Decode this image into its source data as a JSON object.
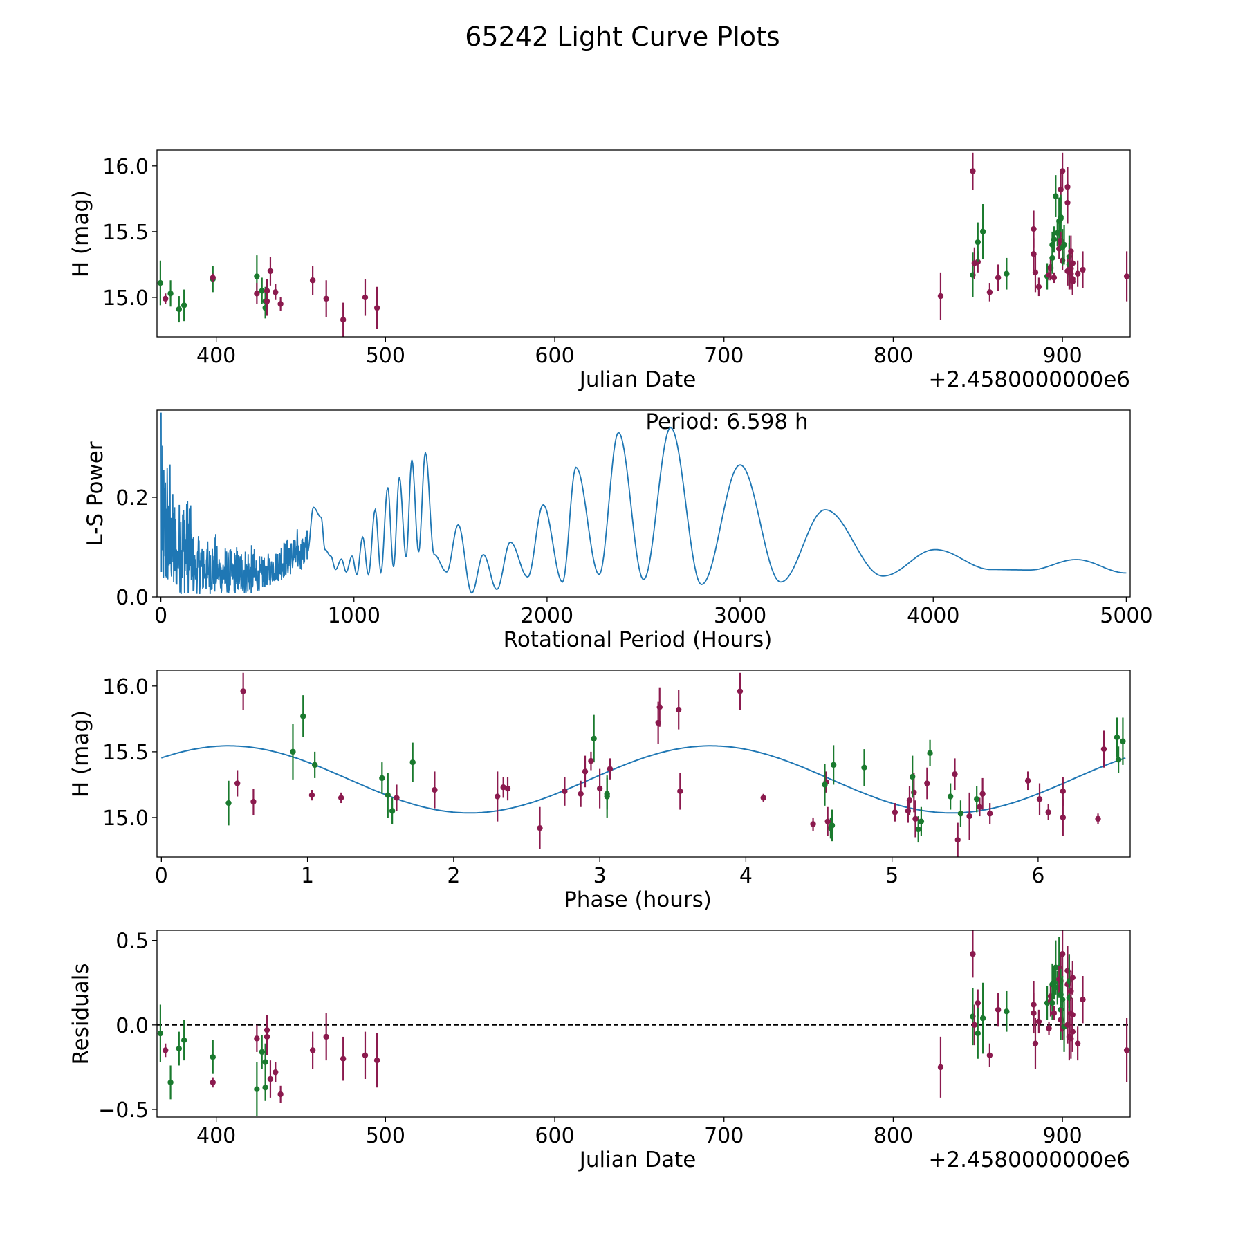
{
  "title": "65242 Light Curve Plots",
  "colors": {
    "r": "#8b1a4e",
    "g": "#1a7a2e",
    "model": "#1f77b4",
    "zero": "#000000"
  },
  "panels": [
    {
      "id": "lightcurve",
      "xlabel": "Julian Date",
      "ylabel": "H (mag)",
      "offset_text": "+2.4580000000e6",
      "xlim": [
        365,
        940
      ],
      "ylim": [
        14.7,
        16.12
      ],
      "xticks": [
        400,
        500,
        600,
        700,
        800,
        900
      ],
      "xtick_labels": [
        "400",
        "500",
        "600",
        "700",
        "800",
        "900"
      ],
      "yticks": [
        15.0,
        15.5,
        16.0
      ],
      "ytick_labels": [
        "15.0",
        "15.5",
        "16.0"
      ]
    },
    {
      "id": "periodogram",
      "xlabel": "Rotational Period (Hours)",
      "ylabel": "L-S Power",
      "xlim": [
        -20,
        5020
      ],
      "ylim": [
        0,
        0.375
      ],
      "xticks": [
        0,
        1000,
        2000,
        3000,
        4000,
        5000
      ],
      "xtick_labels": [
        "0",
        "1000",
        "2000",
        "3000",
        "4000",
        "5000"
      ],
      "yticks": [
        0.0,
        0.2
      ],
      "ytick_labels": [
        "0.0",
        "0.2"
      ],
      "annotation": "Period: 6.598 h"
    },
    {
      "id": "phased",
      "xlabel": "Phase (hours)",
      "ylabel": "H (mag)",
      "xlim": [
        -0.03,
        6.63
      ],
      "ylim": [
        14.7,
        16.12
      ],
      "xticks": [
        0,
        1,
        2,
        3,
        4,
        5,
        6
      ],
      "xtick_labels": [
        "0",
        "1",
        "2",
        "3",
        "4",
        "5",
        "6"
      ],
      "yticks": [
        15.0,
        15.5,
        16.0
      ],
      "ytick_labels": [
        "15.0",
        "15.5",
        "16.0"
      ]
    },
    {
      "id": "residuals",
      "xlabel": "Julian Date",
      "ylabel": "Residuals",
      "offset_text": "+2.4580000000e6",
      "xlim": [
        365,
        940
      ],
      "ylim": [
        -0.545,
        0.56
      ],
      "xticks": [
        400,
        500,
        600,
        700,
        800,
        900
      ],
      "xtick_labels": [
        "400",
        "500",
        "600",
        "700",
        "800",
        "900"
      ],
      "yticks": [
        -0.5,
        0.0,
        0.5
      ],
      "ytick_labels": [
        "−0.5",
        "0.0",
        "0.5"
      ]
    }
  ],
  "chart_data": {
    "type": "scatter",
    "title": "65242 Light Curve Plots",
    "offset": 2458000,
    "period_hours": 6.598,
    "model": {
      "mean": 15.29,
      "amplitude": 0.255,
      "peak_phase_hours": 0.46
    },
    "observations": [
      {
        "t": 367,
        "h": 15.11,
        "e": 0.17,
        "b": "g",
        "ph": 0.46
      },
      {
        "t": 370,
        "h": 14.99,
        "e": 0.04,
        "b": "r",
        "ph": 6.41
      },
      {
        "t": 373,
        "h": 15.03,
        "e": 0.1,
        "b": "g",
        "ph": 5.47
      },
      {
        "t": 378,
        "h": 14.91,
        "e": 0.1,
        "b": "g",
        "ph": 5.18
      },
      {
        "t": 381,
        "h": 14.94,
        "e": 0.12,
        "b": "g",
        "ph": 4.59
      },
      {
        "t": 398,
        "h": 15.14,
        "e": 0.1,
        "b": "g",
        "ph": 5.58
      },
      {
        "t": 398,
        "h": 15.15,
        "e": 0.03,
        "b": "r",
        "ph": 4.12
      },
      {
        "t": 424,
        "h": 15.16,
        "e": 0.16,
        "b": "g",
        "ph": 3.05
      },
      {
        "t": 424,
        "h": 15.03,
        "e": 0.08,
        "b": "r",
        "ph": 5.67
      },
      {
        "t": 427,
        "h": 15.05,
        "e": 0.1,
        "b": "g",
        "ph": 1.58
      },
      {
        "t": 429,
        "h": 14.97,
        "e": 0.11,
        "b": "g",
        "ph": 5.2
      },
      {
        "t": 429,
        "h": 14.92,
        "e": 0.08,
        "b": "g",
        "ph": 4.58
      },
      {
        "t": 430,
        "h": 15.05,
        "e": 0.09,
        "b": "r",
        "ph": 5.11
      },
      {
        "t": 430,
        "h": 14.97,
        "e": 0.11,
        "b": "r",
        "ph": 4.56
      },
      {
        "t": 432,
        "h": 15.2,
        "e": 0.11,
        "b": "r",
        "ph": 6.17
      },
      {
        "t": 435,
        "h": 15.04,
        "e": 0.06,
        "b": "r",
        "ph": 6.07
      },
      {
        "t": 438,
        "h": 14.95,
        "e": 0.05,
        "b": "r",
        "ph": 4.46
      },
      {
        "t": 457,
        "h": 15.13,
        "e": 0.11,
        "b": "r",
        "ph": 5.12
      },
      {
        "t": 465,
        "h": 14.99,
        "e": 0.14,
        "b": "r",
        "ph": 5.16
      },
      {
        "t": 475,
        "h": 14.83,
        "e": 0.13,
        "b": "r",
        "ph": 5.45
      },
      {
        "t": 488,
        "h": 15.0,
        "e": 0.14,
        "b": "r",
        "ph": 6.17
      },
      {
        "t": 495,
        "h": 14.92,
        "e": 0.16,
        "b": "r",
        "ph": 2.59
      },
      {
        "t": 828,
        "h": 15.01,
        "e": 0.18,
        "b": "r",
        "ph": 5.53
      },
      {
        "t": 847,
        "h": 15.96,
        "e": 0.14,
        "b": "r",
        "ph": 0.56
      },
      {
        "t": 847,
        "h": 15.17,
        "e": 0.17,
        "b": "g",
        "ph": 1.55
      },
      {
        "t": 848,
        "h": 15.26,
        "e": 0.12,
        "b": "r",
        "ph": 5.24
      },
      {
        "t": 850,
        "h": 15.27,
        "e": 0.08,
        "b": "r",
        "ph": 4.55
      },
      {
        "t": 850,
        "h": 15.42,
        "e": 0.15,
        "b": "g",
        "ph": 1.72
      },
      {
        "t": 853,
        "h": 15.5,
        "e": 0.21,
        "b": "g",
        "ph": 0.9
      },
      {
        "t": 857,
        "h": 15.04,
        "e": 0.07,
        "b": "r",
        "ph": 5.02
      },
      {
        "t": 862,
        "h": 15.15,
        "e": 0.1,
        "b": "r",
        "ph": 1.61
      },
      {
        "t": 867,
        "h": 15.18,
        "e": 0.12,
        "b": "g",
        "ph": 3.05
      },
      {
        "t": 883,
        "h": 15.52,
        "e": 0.14,
        "b": "r",
        "ph": 6.45
      },
      {
        "t": 883,
        "h": 15.33,
        "e": 0.12,
        "b": "r",
        "ph": 5.43
      },
      {
        "t": 884,
        "h": 15.19,
        "e": 0.15,
        "b": "r",
        "ph": 5.15
      },
      {
        "t": 886,
        "h": 15.08,
        "e": 0.07,
        "b": "r",
        "ph": 5.6
      },
      {
        "t": 891,
        "h": 15.16,
        "e": 0.1,
        "b": "g",
        "ph": 5.4
      },
      {
        "t": 892,
        "h": 15.17,
        "e": 0.04,
        "b": "r",
        "ph": 1.03
      },
      {
        "t": 893,
        "h": 15.23,
        "e": 0.08,
        "b": "r",
        "ph": 2.34
      },
      {
        "t": 893,
        "h": 15.22,
        "e": 0.09,
        "b": "r",
        "ph": 2.37
      },
      {
        "t": 894,
        "h": 15.3,
        "e": 0.12,
        "b": "g",
        "ph": 1.51
      },
      {
        "t": 894,
        "h": 15.4,
        "e": 0.1,
        "b": "g",
        "ph": 1.05
      },
      {
        "t": 895,
        "h": 15.44,
        "e": 0.1,
        "b": "g",
        "ph": 6.55
      },
      {
        "t": 895,
        "h": 15.15,
        "e": 0.04,
        "b": "r",
        "ph": 1.23
      },
      {
        "t": 896,
        "h": 15.77,
        "e": 0.16,
        "b": "g",
        "ph": 0.97
      },
      {
        "t": 897,
        "h": 15.49,
        "e": 0.1,
        "b": "g",
        "ph": 5.26
      },
      {
        "t": 898,
        "h": 15.58,
        "e": 0.18,
        "b": "g",
        "ph": 6.58
      },
      {
        "t": 898,
        "h": 15.37,
        "e": 0.08,
        "b": "r",
        "ph": 3.07
      },
      {
        "t": 899,
        "h": 15.82,
        "e": 0.15,
        "b": "r",
        "ph": 3.54
      },
      {
        "t": 899,
        "h": 15.61,
        "e": 0.15,
        "b": "g",
        "ph": 6.54
      },
      {
        "t": 899,
        "h": 15.6,
        "e": 0.18,
        "b": "g",
        "ph": 2.96
      },
      {
        "t": 899,
        "h": 15.43,
        "e": 0.07,
        "b": "r",
        "ph": 2.94
      },
      {
        "t": 900,
        "h": 15.96,
        "e": 0.14,
        "b": "r",
        "ph": 3.96
      },
      {
        "t": 900,
        "h": 15.28,
        "e": 0.07,
        "b": "r",
        "ph": 5.93
      },
      {
        "t": 900,
        "h": 15.38,
        "e": 0.14,
        "b": "g",
        "ph": 4.81
      },
      {
        "t": 901,
        "h": 15.4,
        "e": 0.15,
        "b": "g",
        "ph": 4.6
      },
      {
        "t": 903,
        "h": 15.84,
        "e": 0.15,
        "b": "r",
        "ph": 3.41
      },
      {
        "t": 903,
        "h": 15.72,
        "e": 0.16,
        "b": "r",
        "ph": 3.4
      },
      {
        "t": 903,
        "h": 15.2,
        "e": 0.11,
        "b": "r",
        "ph": 2.76
      },
      {
        "t": 904,
        "h": 15.31,
        "e": 0.16,
        "b": "g",
        "ph": 5.14
      },
      {
        "t": 904,
        "h": 15.25,
        "e": 0.16,
        "b": "g",
        "ph": 4.54
      },
      {
        "t": 904,
        "h": 15.2,
        "e": 0.14,
        "b": "r",
        "ph": 3.55
      },
      {
        "t": 905,
        "h": 15.35,
        "e": 0.12,
        "b": "r",
        "ph": 2.9
      },
      {
        "t": 905,
        "h": 15.22,
        "e": 0.15,
        "b": "r",
        "ph": 3.0
      },
      {
        "t": 905,
        "h": 15.18,
        "e": 0.12,
        "b": "r",
        "ph": 5.62
      },
      {
        "t": 906,
        "h": 15.14,
        "e": 0.12,
        "b": "r",
        "ph": 6.01
      },
      {
        "t": 906,
        "h": 15.12,
        "e": 0.1,
        "b": "r",
        "ph": 0.63
      },
      {
        "t": 906,
        "h": 15.26,
        "e": 0.1,
        "b": "r",
        "ph": 0.52
      },
      {
        "t": 909,
        "h": 15.18,
        "e": 0.1,
        "b": "r",
        "ph": 2.87
      },
      {
        "t": 912,
        "h": 15.21,
        "e": 0.14,
        "b": "r",
        "ph": 1.87
      },
      {
        "t": 938,
        "h": 15.16,
        "e": 0.19,
        "b": "r",
        "ph": 2.3
      }
    ],
    "residuals": [
      {
        "t": 367,
        "r": -0.05,
        "e": 0.17,
        "b": "g"
      },
      {
        "t": 370,
        "r": -0.15,
        "e": 0.04,
        "b": "r"
      },
      {
        "t": 373,
        "r": -0.34,
        "e": 0.1,
        "b": "g"
      },
      {
        "t": 378,
        "r": -0.14,
        "e": 0.1,
        "b": "g"
      },
      {
        "t": 381,
        "r": -0.09,
        "e": 0.12,
        "b": "g"
      },
      {
        "t": 398,
        "r": -0.19,
        "e": 0.1,
        "b": "g"
      },
      {
        "t": 398,
        "r": -0.34,
        "e": 0.03,
        "b": "r"
      },
      {
        "t": 424,
        "r": -0.38,
        "e": 0.16,
        "b": "g"
      },
      {
        "t": 424,
        "r": -0.08,
        "e": 0.08,
        "b": "r"
      },
      {
        "t": 427,
        "r": -0.16,
        "e": 0.1,
        "b": "g"
      },
      {
        "t": 429,
        "r": -0.22,
        "e": 0.11,
        "b": "g"
      },
      {
        "t": 429,
        "r": -0.37,
        "e": 0.08,
        "b": "g"
      },
      {
        "t": 430,
        "r": -0.03,
        "e": 0.09,
        "b": "r"
      },
      {
        "t": 430,
        "r": -0.07,
        "e": 0.11,
        "b": "r"
      },
      {
        "t": 432,
        "r": -0.32,
        "e": 0.11,
        "b": "r"
      },
      {
        "t": 435,
        "r": -0.28,
        "e": 0.06,
        "b": "r"
      },
      {
        "t": 438,
        "r": -0.41,
        "e": 0.05,
        "b": "r"
      },
      {
        "t": 457,
        "r": -0.15,
        "e": 0.11,
        "b": "r"
      },
      {
        "t": 465,
        "r": -0.07,
        "e": 0.14,
        "b": "r"
      },
      {
        "t": 475,
        "r": -0.2,
        "e": 0.13,
        "b": "r"
      },
      {
        "t": 488,
        "r": -0.18,
        "e": 0.14,
        "b": "r"
      },
      {
        "t": 495,
        "r": -0.21,
        "e": 0.16,
        "b": "r"
      },
      {
        "t": 828,
        "r": -0.25,
        "e": 0.18,
        "b": "r"
      },
      {
        "t": 847,
        "r": 0.42,
        "e": 0.14,
        "b": "r"
      },
      {
        "t": 847,
        "r": 0.05,
        "e": 0.17,
        "b": "g"
      },
      {
        "t": 848,
        "r": 0.0,
        "e": 0.12,
        "b": "r"
      },
      {
        "t": 850,
        "r": 0.13,
        "e": 0.08,
        "b": "r"
      },
      {
        "t": 850,
        "r": -0.05,
        "e": 0.15,
        "b": "g"
      },
      {
        "t": 853,
        "r": 0.04,
        "e": 0.21,
        "b": "g"
      },
      {
        "t": 857,
        "r": -0.18,
        "e": 0.07,
        "b": "r"
      },
      {
        "t": 862,
        "r": 0.09,
        "e": 0.1,
        "b": "r"
      },
      {
        "t": 867,
        "r": 0.08,
        "e": 0.12,
        "b": "g"
      },
      {
        "t": 883,
        "r": 0.12,
        "e": 0.14,
        "b": "r"
      },
      {
        "t": 883,
        "r": 0.07,
        "e": 0.12,
        "b": "r"
      },
      {
        "t": 884,
        "r": -0.11,
        "e": 0.15,
        "b": "r"
      },
      {
        "t": 886,
        "r": 0.02,
        "e": 0.07,
        "b": "r"
      },
      {
        "t": 891,
        "r": 0.13,
        "e": 0.1,
        "b": "g"
      },
      {
        "t": 892,
        "r": -0.02,
        "e": 0.04,
        "b": "r"
      },
      {
        "t": 893,
        "r": 0.17,
        "e": 0.08,
        "b": "r"
      },
      {
        "t": 893,
        "r": 0.14,
        "e": 0.09,
        "b": "r"
      },
      {
        "t": 894,
        "r": 0.24,
        "e": 0.12,
        "b": "g"
      },
      {
        "t": 894,
        "r": 0.13,
        "e": 0.1,
        "b": "g"
      },
      {
        "t": 895,
        "r": 0.25,
        "e": 0.1,
        "b": "g"
      },
      {
        "t": 895,
        "r": 0.07,
        "e": 0.04,
        "b": "r"
      },
      {
        "t": 896,
        "r": 0.34,
        "e": 0.16,
        "b": "g"
      },
      {
        "t": 897,
        "r": 0.22,
        "e": 0.1,
        "b": "g"
      },
      {
        "t": 898,
        "r": 0.34,
        "e": 0.18,
        "b": "g"
      },
      {
        "t": 898,
        "r": 0.27,
        "e": 0.08,
        "b": "r"
      },
      {
        "t": 899,
        "r": 0.26,
        "e": 0.15,
        "b": "r"
      },
      {
        "t": 899,
        "r": 0.18,
        "e": 0.15,
        "b": "g"
      },
      {
        "t": 899,
        "r": 0.09,
        "e": 0.18,
        "b": "g"
      },
      {
        "t": 899,
        "r": 0.03,
        "e": 0.07,
        "b": "r"
      },
      {
        "t": 900,
        "r": 0.42,
        "e": 0.14,
        "b": "r"
      },
      {
        "t": 900,
        "r": -0.02,
        "e": 0.07,
        "b": "r"
      },
      {
        "t": 900,
        "r": 0.15,
        "e": 0.14,
        "b": "g"
      },
      {
        "t": 901,
        "r": -0.01,
        "e": 0.15,
        "b": "g"
      },
      {
        "t": 903,
        "r": 0.32,
        "e": 0.15,
        "b": "r"
      },
      {
        "t": 903,
        "r": 0.24,
        "e": 0.16,
        "b": "r"
      },
      {
        "t": 903,
        "r": 0.0,
        "e": 0.11,
        "b": "r"
      },
      {
        "t": 904,
        "r": 0.26,
        "e": 0.16,
        "b": "g"
      },
      {
        "t": 904,
        "r": 0.16,
        "e": 0.16,
        "b": "g"
      },
      {
        "t": 904,
        "r": -0.07,
        "e": 0.14,
        "b": "r"
      },
      {
        "t": 905,
        "r": 0.2,
        "e": 0.12,
        "b": "r"
      },
      {
        "t": 905,
        "r": 0.07,
        "e": 0.15,
        "b": "r"
      },
      {
        "t": 905,
        "r": -0.08,
        "e": 0.12,
        "b": "r"
      },
      {
        "t": 906,
        "r": -0.04,
        "e": 0.12,
        "b": "r"
      },
      {
        "t": 906,
        "r": 0.06,
        "e": 0.1,
        "b": "r"
      },
      {
        "t": 906,
        "r": 0.28,
        "e": 0.1,
        "b": "r"
      },
      {
        "t": 909,
        "r": -0.11,
        "e": 0.1,
        "b": "r"
      },
      {
        "t": 912,
        "r": 0.15,
        "e": 0.14,
        "b": "r"
      },
      {
        "t": 938,
        "r": -0.15,
        "e": 0.19,
        "b": "r"
      }
    ],
    "periodogram": {
      "xlabel": "Rotational Period (Hours)",
      "ylabel": "L-S Power",
      "best_period_hours": 6.598,
      "peaks": [
        [
          790,
          0.18
        ],
        [
          830,
          0.16
        ],
        [
          880,
          0.082
        ],
        [
          935,
          0.076
        ],
        [
          990,
          0.082
        ],
        [
          1045,
          0.12
        ],
        [
          1110,
          0.175
        ],
        [
          1175,
          0.22
        ],
        [
          1235,
          0.24
        ],
        [
          1300,
          0.275
        ],
        [
          1370,
          0.29
        ],
        [
          1540,
          0.145
        ],
        [
          1670,
          0.085
        ],
        [
          1810,
          0.11
        ],
        [
          1980,
          0.185
        ],
        [
          2150,
          0.26
        ],
        [
          2370,
          0.33
        ],
        [
          2640,
          0.34
        ],
        [
          3000,
          0.265
        ],
        [
          3440,
          0.175
        ],
        [
          4010,
          0.095
        ],
        [
          4740,
          0.075
        ]
      ],
      "troughs": [
        [
          850,
          0.095
        ],
        [
          905,
          0.055
        ],
        [
          960,
          0.05
        ],
        [
          1015,
          0.045
        ],
        [
          1075,
          0.045
        ],
        [
          1140,
          0.05
        ],
        [
          1205,
          0.06
        ],
        [
          1270,
          0.08
        ],
        [
          1335,
          0.09
        ],
        [
          1415,
          0.085
        ],
        [
          1480,
          0.05
        ],
        [
          1610,
          0.008
        ],
        [
          1740,
          0.015
        ],
        [
          1900,
          0.04
        ],
        [
          2080,
          0.03
        ],
        [
          2270,
          0.045
        ],
        [
          2500,
          0.035
        ],
        [
          2800,
          0.025
        ],
        [
          3210,
          0.03
        ],
        [
          3740,
          0.042
        ],
        [
          4300,
          0.055
        ],
        [
          4500,
          0.054
        ],
        [
          5000,
          0.048
        ]
      ],
      "noise_region": {
        "start": 0,
        "end": 760,
        "typical_max": 0.12,
        "max": 0.37
      }
    }
  }
}
